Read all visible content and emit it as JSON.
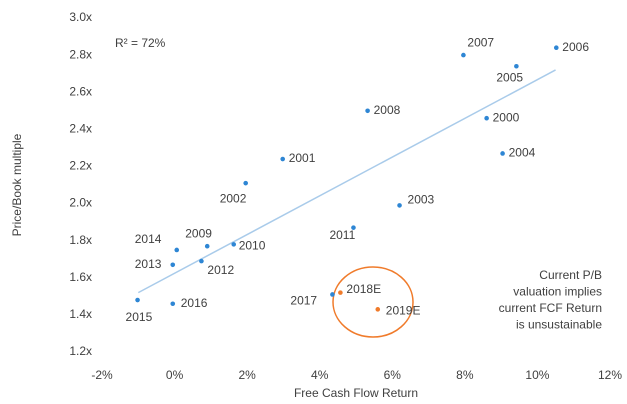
{
  "chart_data": {
    "type": "scatter",
    "x_label": "Free Cash Flow Return",
    "y_label": "Price/Book multiple",
    "annotation": "R² = 72%",
    "callout": [
      "Current P/B",
      "valuation implies",
      "current FCF Return",
      "is unsustainable"
    ],
    "labels": [
      "2006",
      "2007",
      "2005",
      "2008",
      "2000",
      "2004",
      "2001",
      "2002",
      "2003",
      "2011",
      "2014",
      "2009",
      "2010",
      "2013",
      "2012",
      "2017",
      "2018E",
      "2019E",
      "2016",
      "2015"
    ],
    "x": [
      10.52,
      7.96,
      9.42,
      5.32,
      8.6,
      9.04,
      2.98,
      1.96,
      6.2,
      4.93,
      0.06,
      0.9,
      1.63,
      -0.05,
      0.74,
      4.35,
      4.57,
      5.6,
      -0.05,
      -1.02
    ],
    "values": [
      2.84,
      2.8,
      2.74,
      2.5,
      2.46,
      2.27,
      2.24,
      2.11,
      1.99,
      1.87,
      1.75,
      1.77,
      1.78,
      1.67,
      1.69,
      1.51,
      1.52,
      1.43,
      1.46,
      1.48
    ],
    "point_colors": [
      "#2e86d4",
      "#2e86d4",
      "#2e86d4",
      "#2e86d4",
      "#2e86d4",
      "#2e86d4",
      "#2e86d4",
      "#2e86d4",
      "#2e86d4",
      "#2e86d4",
      "#2e86d4",
      "#2e86d4",
      "#2e86d4",
      "#2e86d4",
      "#2e86d4",
      "#2e86d4",
      "#f07b2b",
      "#f07b2b",
      "#2e86d4",
      "#2e86d4"
    ],
    "trendline": {
      "x": [
        -1,
        10.5
      ],
      "values": [
        1.52,
        2.72
      ],
      "color": "#a9cbea"
    },
    "xlim": [
      -2,
      12
    ],
    "xticks": [
      {
        "value": -2,
        "label": "-2%"
      },
      {
        "value": 0,
        "label": "0%"
      },
      {
        "value": 2,
        "label": "2%"
      },
      {
        "value": 4,
        "label": "4%"
      },
      {
        "value": 6,
        "label": "6%"
      },
      {
        "value": 8,
        "label": "8%"
      },
      {
        "value": 10,
        "label": "10%"
      },
      {
        "value": 12,
        "label": "12%"
      }
    ],
    "ylim": [
      1.2,
      3.0
    ],
    "yticks": [
      {
        "value": 1.2,
        "label": "1.2x"
      },
      {
        "value": 1.4,
        "label": "1.4x"
      },
      {
        "value": 1.6,
        "label": "1.6x"
      },
      {
        "value": 1.8,
        "label": "1.8x"
      },
      {
        "value": 2.0,
        "label": "2.0x"
      },
      {
        "value": 2.2,
        "label": "2.2x"
      },
      {
        "value": 2.4,
        "label": "2.4x"
      },
      {
        "value": 2.6,
        "label": "2.6x"
      },
      {
        "value": 2.8,
        "label": "2.8x"
      },
      {
        "value": 3.0,
        "label": "3.0x"
      }
    ],
    "highlight_color": "#f07b2b"
  }
}
